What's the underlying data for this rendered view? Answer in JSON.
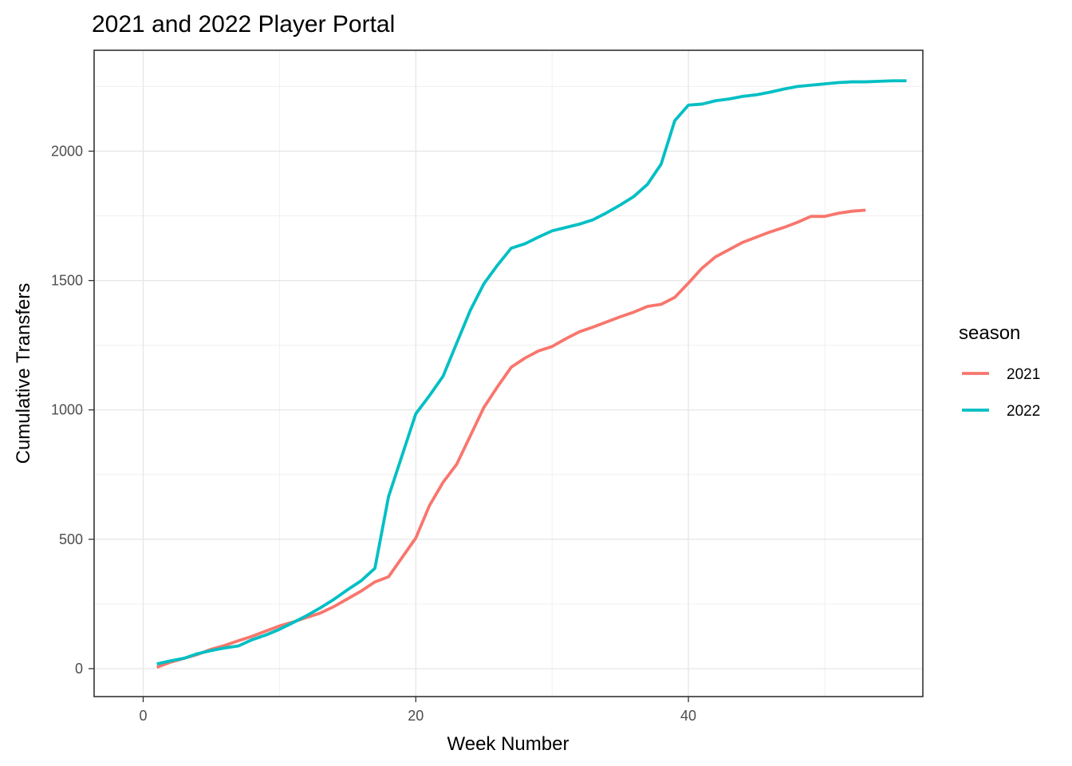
{
  "chart_data": {
    "type": "line",
    "title": "2021 and 2022 Player Portal",
    "xlabel": "Week Number",
    "ylabel": "Cumulative Transfers",
    "xlim": [
      -3.6,
      57.2
    ],
    "ylim": [
      -108,
      2390
    ],
    "x_ticks": [
      0,
      20,
      40
    ],
    "x_tick_labels": [
      "0",
      "20",
      "40"
    ],
    "y_ticks": [
      0,
      500,
      1000,
      1500,
      2000
    ],
    "y_tick_labels": [
      "0",
      "500",
      "1000",
      "1500",
      "2000"
    ],
    "grid": true,
    "legend": {
      "title": "season",
      "position": "right"
    },
    "series": [
      {
        "name": "2021",
        "color": "#F8766D",
        "x": [
          1,
          2,
          3,
          4,
          5,
          6,
          7,
          8,
          9,
          10,
          11,
          12,
          13,
          14,
          15,
          16,
          17,
          18,
          19,
          20,
          21,
          22,
          23,
          24,
          25,
          26,
          27,
          28,
          29,
          30,
          31,
          32,
          33,
          34,
          35,
          36,
          37,
          38,
          39,
          40,
          41,
          42,
          43,
          44,
          45,
          46,
          47,
          48,
          49,
          50,
          51,
          52,
          53
        ],
        "y": [
          5,
          25,
          40,
          55,
          75,
          90,
          108,
          125,
          145,
          165,
          180,
          198,
          215,
          240,
          270,
          300,
          335,
          355,
          430,
          505,
          630,
          720,
          790,
          900,
          1010,
          1090,
          1165,
          1200,
          1228,
          1245,
          1275,
          1302,
          1320,
          1340,
          1360,
          1378,
          1400,
          1408,
          1435,
          1490,
          1548,
          1592,
          1620,
          1648,
          1668,
          1688,
          1705,
          1725,
          1748,
          1748,
          1760,
          1768,
          1772
        ]
      },
      {
        "name": "2022",
        "color": "#00BFC4",
        "x": [
          1,
          2,
          3,
          4,
          5,
          6,
          7,
          8,
          9,
          10,
          11,
          12,
          13,
          14,
          15,
          16,
          17,
          18,
          19,
          20,
          21,
          22,
          23,
          24,
          25,
          26,
          27,
          28,
          29,
          30,
          31,
          32,
          33,
          34,
          35,
          36,
          37,
          38,
          39,
          40,
          41,
          42,
          43,
          44,
          45,
          46,
          47,
          48,
          49,
          50,
          51,
          52,
          53,
          54,
          55,
          56
        ],
        "y": [
          18,
          30,
          40,
          58,
          70,
          80,
          88,
          112,
          130,
          152,
          178,
          205,
          235,
          268,
          305,
          340,
          388,
          665,
          825,
          985,
          1055,
          1130,
          1258,
          1385,
          1488,
          1560,
          1625,
          1642,
          1668,
          1692,
          1705,
          1718,
          1735,
          1762,
          1792,
          1825,
          1872,
          1950,
          2118,
          2178,
          2182,
          2195,
          2202,
          2212,
          2218,
          2228,
          2240,
          2250,
          2255,
          2260,
          2265,
          2268,
          2268,
          2270,
          2272,
          2272
        ]
      }
    ]
  }
}
